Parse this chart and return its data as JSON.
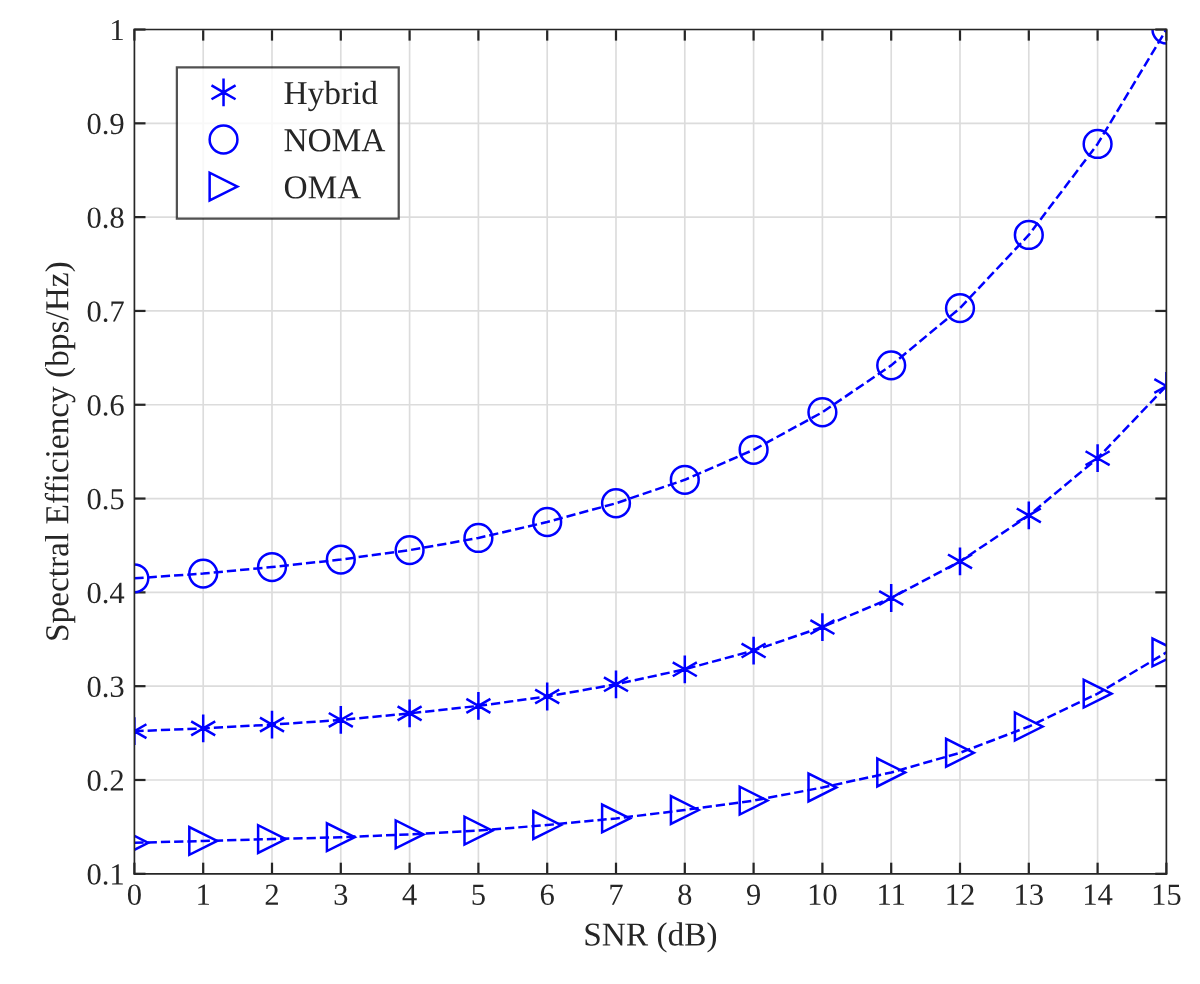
{
  "chart_data": {
    "type": "line",
    "xlabel": "SNR (dB)",
    "ylabel": "Spectral Efficiency (bps/Hz)",
    "x": [
      0,
      1,
      2,
      3,
      4,
      5,
      6,
      7,
      8,
      9,
      10,
      11,
      12,
      13,
      14,
      15
    ],
    "series": [
      {
        "name": "Hybrid",
        "color": "#0000ff",
        "marker": "cross",
        "line_style": "dashed",
        "values": [
          0.252,
          0.255,
          0.259,
          0.264,
          0.271,
          0.279,
          0.289,
          0.302,
          0.318,
          0.338,
          0.363,
          0.394,
          0.433,
          0.482,
          0.543,
          0.62
        ]
      },
      {
        "name": "NOMA",
        "color": "#0000ff",
        "marker": "circle",
        "line_style": "dashed",
        "values": [
          0.415,
          0.42,
          0.427,
          0.435,
          0.445,
          0.458,
          0.475,
          0.495,
          0.52,
          0.552,
          0.592,
          0.642,
          0.703,
          0.781,
          0.878,
          1.0
        ]
      },
      {
        "name": "OMA",
        "color": "#0000ff",
        "marker": "triangle",
        "line_style": "dashed",
        "values": [
          0.133,
          0.135,
          0.137,
          0.139,
          0.142,
          0.146,
          0.152,
          0.159,
          0.168,
          0.178,
          0.192,
          0.208,
          0.229,
          0.257,
          0.292,
          0.336
        ]
      }
    ],
    "xlim": [
      0,
      15
    ],
    "xticks": [
      0,
      1,
      2,
      3,
      4,
      5,
      6,
      7,
      8,
      9,
      10,
      11,
      12,
      13,
      14,
      15
    ],
    "ylim": [
      0.1,
      1
    ],
    "yticks": [
      0.1,
      0.2,
      0.3,
      0.4,
      0.5,
      0.6,
      0.7,
      0.8,
      0.9,
      1
    ],
    "grid": true,
    "legend": "top left"
  }
}
